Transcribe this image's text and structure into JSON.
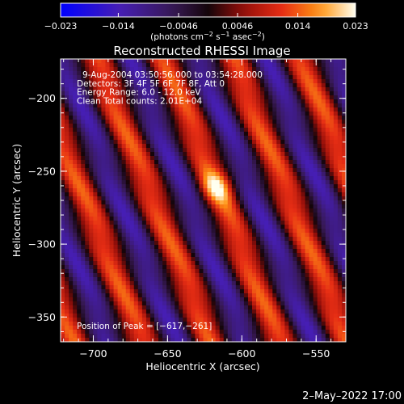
{
  "chart_data": {
    "type": "heatmap",
    "title": "Reconstructed RHESSI Image",
    "xlabel": "Heliocentric X (arcsec)",
    "ylabel": "Heliocentric Y (arcsec)",
    "xlim": [
      -722,
      -530
    ],
    "ylim": [
      -367,
      -173
    ],
    "xticks": [
      -700,
      -650,
      -600,
      -550
    ],
    "xtick_labels": [
      "−700",
      "−650",
      "−600",
      "−550"
    ],
    "yticks": [
      -200,
      -250,
      -300,
      -350
    ],
    "ytick_labels": [
      "−200",
      "−250",
      "−300",
      "−350"
    ],
    "colorbar": {
      "range": [
        -0.023,
        0.023
      ],
      "ticks": [
        -0.023,
        -0.014,
        -0.0046,
        0.0046,
        0.014,
        0.023
      ],
      "tick_labels": [
        "−0.023",
        "−0.014",
        "−0.0046",
        "0.0046",
        "0.014",
        "0.023"
      ],
      "unit_parts": [
        "(photons cm",
        "−2",
        " s",
        "−1",
        " asec",
        "−2",
        ")"
      ]
    },
    "info_lines": [
      "9-Aug-2004 03:50:56.000 to 03:54:28.000",
      "Detectors: 3F 4F 5F 6F 7F 8F, Att 0",
      "Energy Range: 6.0 - 12.0 keV",
      "Clean    Total counts: 2.01E+04"
    ],
    "peak_label": "Position of Peak = [−617,−261]",
    "peak": {
      "x": -617,
      "y": -261
    },
    "stripe_spacing_arcsec": 46,
    "stripe_slope": 2.5,
    "stripe_amplitude": 0.0125,
    "stripe_offset": 0.0005,
    "source_peak_value": 0.023,
    "source_sigma_arcsec": 8
  },
  "timestamp": "2–May–2022 17:00"
}
